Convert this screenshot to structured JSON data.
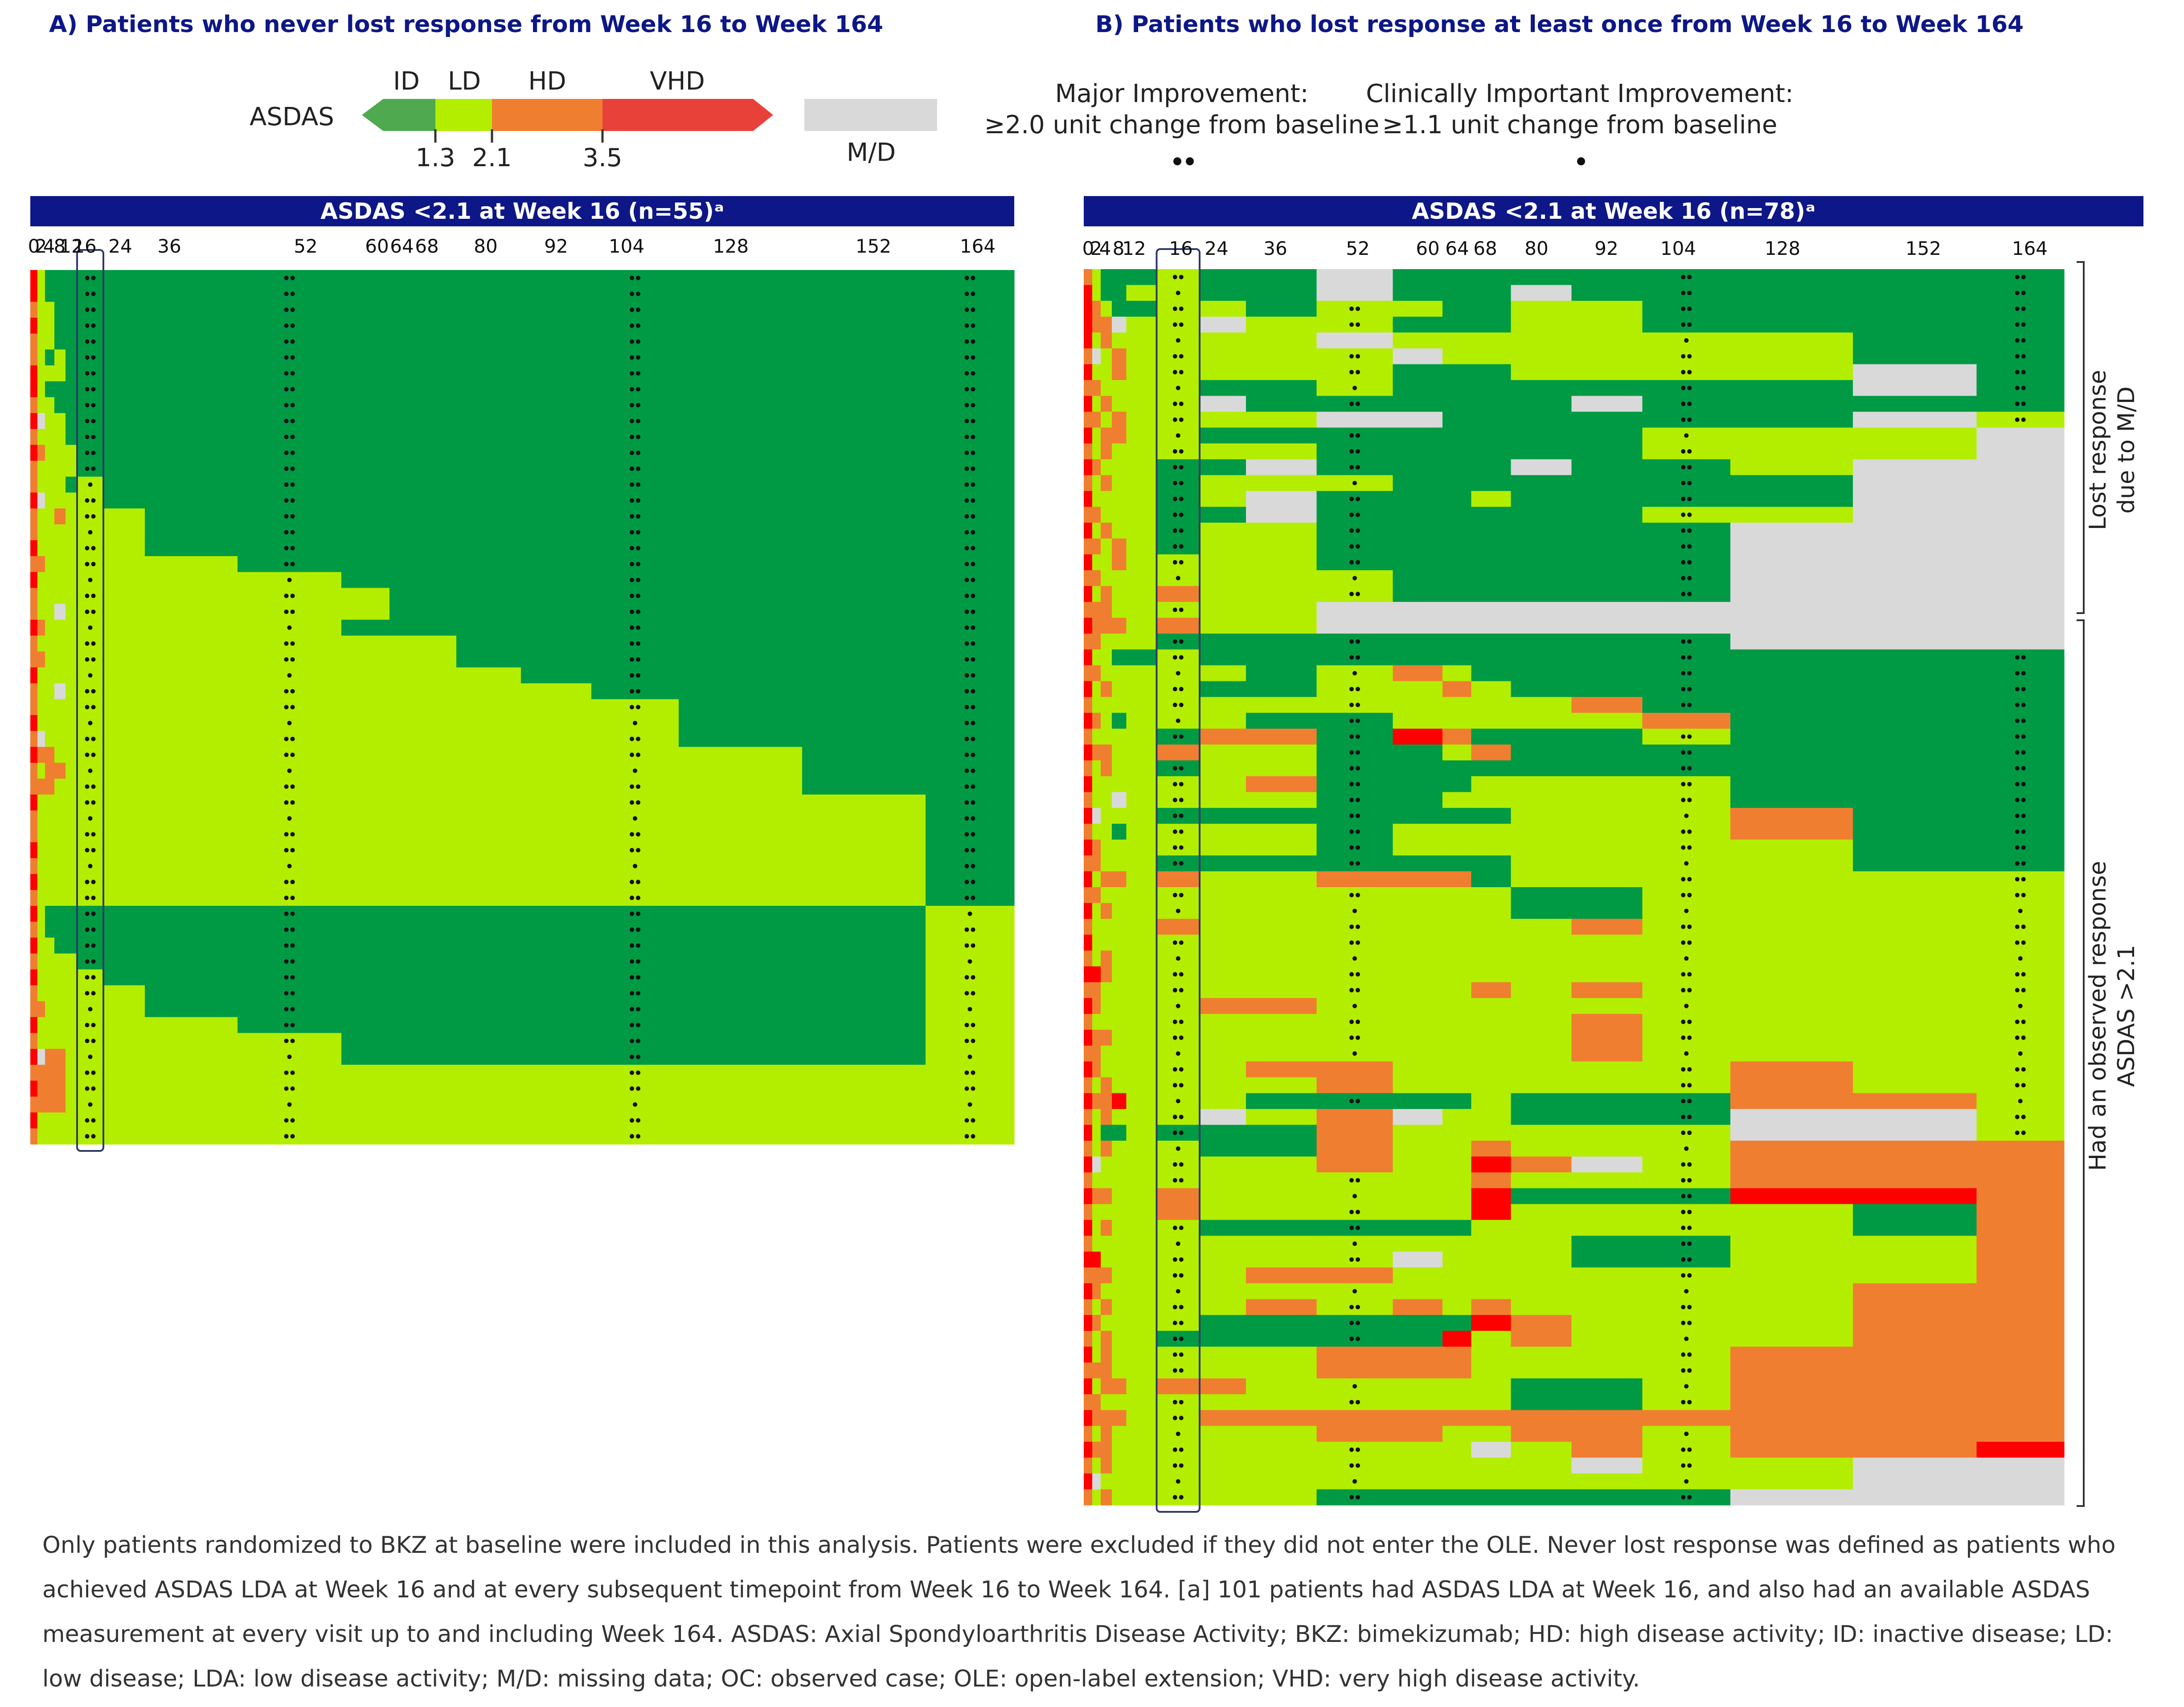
{
  "panels": {
    "a_title": "A) Patients who never lost response from Week 16 to Week 164",
    "b_title": "B) Patients who lost response at least once from Week 16 to Week 164"
  },
  "legend": {
    "asdas_label": "ASDAS",
    "categories": [
      "ID",
      "LD",
      "HD",
      "VHD"
    ],
    "thresholds": [
      "1.3",
      "2.1",
      "3.5"
    ],
    "missing_label": "M/D",
    "major_line1": "Major Improvement:",
    "major_line2": "≥2.0 unit change from baseline",
    "clinical_line1": "Clinically Important Improvement:",
    "clinical_line2": "≥1.1 unit change from baseline",
    "colors": {
      "ID": "#009a44",
      "LD": "#b3ee00",
      "HD": "#f07e31",
      "VHD": "#ff0000",
      "MD": "#d9d9d9",
      "ID_legend": "#4ea94f"
    }
  },
  "header_a": "ASDAS <2.1 at Week 16 (n=55)ᵃ",
  "header_b": "ASDAS <2.1 at Week 16 (n=78)ᵃ",
  "side_labels": {
    "top_line1": "Lost response",
    "top_line2": "due to M/D",
    "bottom_line1": "Had an observed response",
    "bottom_line2": "ASDAS >2.1"
  },
  "footnote": "Only patients randomized to BKZ at baseline were included in this analysis. Patients were excluded if they did not enter the OLE. Never lost response was defined as patients who achieved ASDAS LDA at Week 16 and at every subsequent timepoint from Week 16 to Week 164. [a] 101 patients had ASDAS LDA at Week 16, and also had an available ASDAS measurement at every visit up to and including Week 164. ASDAS: Axial Spondyloarthritis Disease Activity; BKZ: bimekizumab; HD: high disease activity; ID: inactive disease; LD: low disease; LDA: low disease activity; M/D: missing data; OC: observed case; OLE: open-label extension; VHD: very high disease activity.",
  "chart_data": [
    {
      "type": "heatmap",
      "title": "A) Patients who never lost response from Week 16 to Week 164",
      "subtitle": "ASDAS <2.1 at Week 16 (n=55)ᵃ",
      "x_weeks": [
        0,
        2,
        4,
        8,
        12,
        16,
        24,
        36,
        52,
        60,
        64,
        68,
        80,
        92,
        104,
        128,
        152,
        164
      ],
      "x_tick_labels": [
        "0",
        "2",
        "4",
        "8",
        "12",
        "16",
        "24",
        "36",
        "52",
        "60",
        "64",
        "68",
        "80",
        "92",
        "104",
        "128",
        "152",
        "164"
      ],
      "category_codes": {
        "I": "ID",
        "L": "LD",
        "H": "HD",
        "V": "VHD",
        "M": "M/D"
      },
      "rows": [
        "VLIIIIIIIIIIIIIIII",
        "VLIIIIIIIIIIIIIIII",
        "HLLIIIIIIIIIIIIIII",
        "VLLIIIIIIIIIIIIIII",
        "HLLIIIIIIIIIIIIIII",
        "HLILIIIIIIIIIIIIII",
        "VLLLIIIIIIIIIIIIII",
        "VLIIIIIIIIIIIIIIII",
        "HLLIIIIIIIIIIIIIII",
        "VMLLIIIIIIIIIIIIII",
        "HLLLIIIIIIIIIIIIII",
        "VHLLLIIIIIIIIIIIII",
        "HLLLLIIIIIIIIIIIII",
        "HLLLILIIIIIIIIIIII",
        "VMLLLLIIIIIIIIIIII",
        "HLLHLLLIIIIIIIIIII",
        "HLLLLLLIIIIIIIIIII",
        "VLLLLLLIIIIIIIIIII",
        "HHLLLLLLIIIIIIIIII",
        "VLLLLLLLLIIIIIIIII",
        "HLLLLLLLLLIIIIIIII",
        "HLLMLLLLLLIIIIIIII",
        "VHLLLLLLLIIIIIIIII",
        "HLLLLLLLLLLLIIIIII",
        "HHLLLLLLLLLLIIIIII",
        "VLLLLLLLLLLLLIIIII",
        "HLLMLLLLLLLLLLIIII",
        "HLLLLLLLLLLLLLLIII",
        "VLLLLLLLLLLLLLLIII",
        "HMLLLLLLLLLLLLLIII",
        "VHHLLLLLLLLLLLLLII",
        "HLHHLLLLLLLLLLLLII",
        "HHHLLLLLLLLLLLLLII",
        "VLLLLLLLLLLLLLLLLI",
        "HLLLLLLLLLLLLLLLLI",
        "HLLLLLLLLLLLLLLLLI",
        "VLLLLLLLLLLLLLLLLI",
        "HLLLLLLLLLLLLLLLLI",
        "VLLLLLLLLLLLLLLLLI",
        "HLLLLLLLLLLLLLLLLI",
        "VLIIIIIIIIIIIIIIIL",
        "HLIIIIIIIIIIIIIIIL",
        "VLLIIIIIIIIIIIIIIL",
        "HLLLLIIIIIIIIIIIIL",
        "VLLLLLIIIIIIIIIIIL",
        "HLLLLLLIIIIIIIIIIL",
        "HHLLLLLIIIIIIIIIIL",
        "VLLLLLLLIIIIIIIIIL",
        "HLLLLLLLLIIIIIIIIL",
        "VMHHLLLLLIIIIIIIIL",
        "HHHHLLLLLLLLLLLLLL",
        "VHHHLLLLLLLLLLLLLL",
        "HHHHLLLLLLLLLLLLLL",
        "VLLLLLLLLLLLLLLLLL",
        "HLLLLLLLLLLLLLLLLL"
      ]
    },
    {
      "type": "heatmap",
      "title": "B) Patients who lost response at least once from Week 16 to Week 164",
      "subtitle": "ASDAS <2.1 at Week 16 (n=78)ᵃ",
      "x_weeks": [
        0,
        2,
        4,
        8,
        12,
        16,
        24,
        36,
        52,
        60,
        64,
        68,
        80,
        92,
        104,
        128,
        152,
        164
      ],
      "x_tick_labels": [
        "0",
        "2",
        "4",
        "8",
        "12",
        "16",
        "24",
        "36",
        "52",
        "60",
        "64",
        "68",
        "80",
        "92",
        "104",
        "128",
        "152",
        "164"
      ],
      "category_codes": {
        "I": "ID",
        "L": "LD",
        "H": "HD",
        "V": "VHD",
        "M": "M/D"
      },
      "groups": [
        {
          "label": "Lost response due to M/D",
          "rows": 24
        },
        {
          "label": "Had an observed response ASDAS >2.1",
          "rows": 54
        }
      ],
      "rows": [
        "HLIIILIIMIIIIIIIII",
        "VLIILLIIMIIIMIIIII",
        "VHLIILLILLIILLIIII",
        "VHHMLLMLLIIILLIIII",
        "VLHLLLLLMLLLLLLLII",
        "HMLHLLLLLMLLLLLLII",
        "VLLHLLLLLIIILLLLMI",
        "HHLLLLIILIIIIIIIMI",
        "VLHLLLMIIIIIIMIIII",
        "HHLHLLLLMMIIIIIIML",
        "VLHHLLIIIIIIIILLLM",
        "HLHLLLLLIIIIIILLLM",
        "VHLLLIIMIIIIMIILMM",
        "HLHLLILLLIIIIIIIMM",
        "VLLLLILMIIILIIIIMM",
        "HHLLLIIMIIIIIILLMM",
        "VLHLLILLIIIIIIIMMM",
        "HHLHLILLIIIIIIIMMM",
        "VLLHLLLLIIIIIIIMMM",
        "HHLLLLLLLIIIIIIMMM",
        "VLHLLHLLLIIIIIIMMM",
        "HHHLLLLLMMMMMMMMMM",
        "VHHHLHLLMMMMMMMMMM",
        "HHLLLIIIIIIIIIIMMM",
        "VLLIILIIIIIIIIIIII",
        "HHLLLLLILHLIIIIIII",
        "VLHLLLIILLHLIIIIII",
        "HLLLLLLLLLLLLHIIII",
        "VHLILLLIILLLLLHIII",
        "HLLLLIHHIVHIIILIII",
        "VHHLLHLLIILHIIIIII",
        "HLHLLILLIIIIIIIIII",
        "VLLLLLLHIIILLLLIII",
        "HLLMLLLLIILLLLLIII",
        "VMLLLIIIIIIILLLHII",
        "HLLILLLLILLLLLLHII",
        "VHLLLLLLILLLLLLLII",
        "HHLLLIIIIIIILLLLII",
        "VLHHLHLLHHHILLLLLL",
        "HHLLLLLLLLLLIILLLL",
        "VLHLLLLLLLLLIILLLL",
        "HLLLLHLLLLLLLHLLLL",
        "VLLLLLLLLLLLLLLLLL",
        "HLHLLLLLLLLLLLLLLL",
        "VVHLLLLLLLLLLLLLLL",
        "HHLLLLLLLLLHLHLLLL",
        "VHLLLLHHLLLLLLLLLL",
        "HLLLLLLLLLLLLHLLLL",
        "VHHLLLLLLLLLLHLLLL",
        "HHLLLLLLLLLLLHLLLL",
        "VHLLLLLHHLLLLLLHLL",
        "HLHLLLLLHLLLLLLHLL",
        "VHHVLLLIIIILIIIHHL",
        "HLHLLLMLHMLLIIIMML",
        "VLIILIIIHLLLLLLMML",
        "HLHLLLIIHLLHLLLHHH",
        "VMLLLLLLHLLVHMLHHH",
        "HLLLLLLLLLLHLLLHHH",
        "VHHLLHLLLLLVIIIVVH",
        "HLLLLHLLLLLVLLLLIH",
        "VLHLLLIIIIILLLLLIH",
        "HLLLLLLLLLLLLIILLH",
        "VVLLLLLLLMLLLIILLH",
        "HHHLLLLHHLLLLLLLLH",
        "VHLLLLLLLLLLLLLLHH",
        "HLHLLLLHLHLHLLLLHH",
        "VHLLLLIIIIIVHLLLHH",
        "HLHLLIIIIIVLHLLLHH",
        "VLHLLLLLHHHLLLLHHH",
        "HHHLLLLLHHHLLLLHHH",
        "VLHHLHHLLLLLIILHHH",
        "HHLLLLLLLLLLIILHHH",
        "VHHHLLHHHHHHHHHHHH",
        "HLHLLLLLHHLLHHLHHH",
        "VHHLLLLLLLLMLHLHHV",
        "HLHLLLLLLLLLLMLLMM",
        "VMLLLLLLLLLLLLLLMM",
        "HLHLLLLLIIIIIIIMMM"
      ]
    }
  ]
}
